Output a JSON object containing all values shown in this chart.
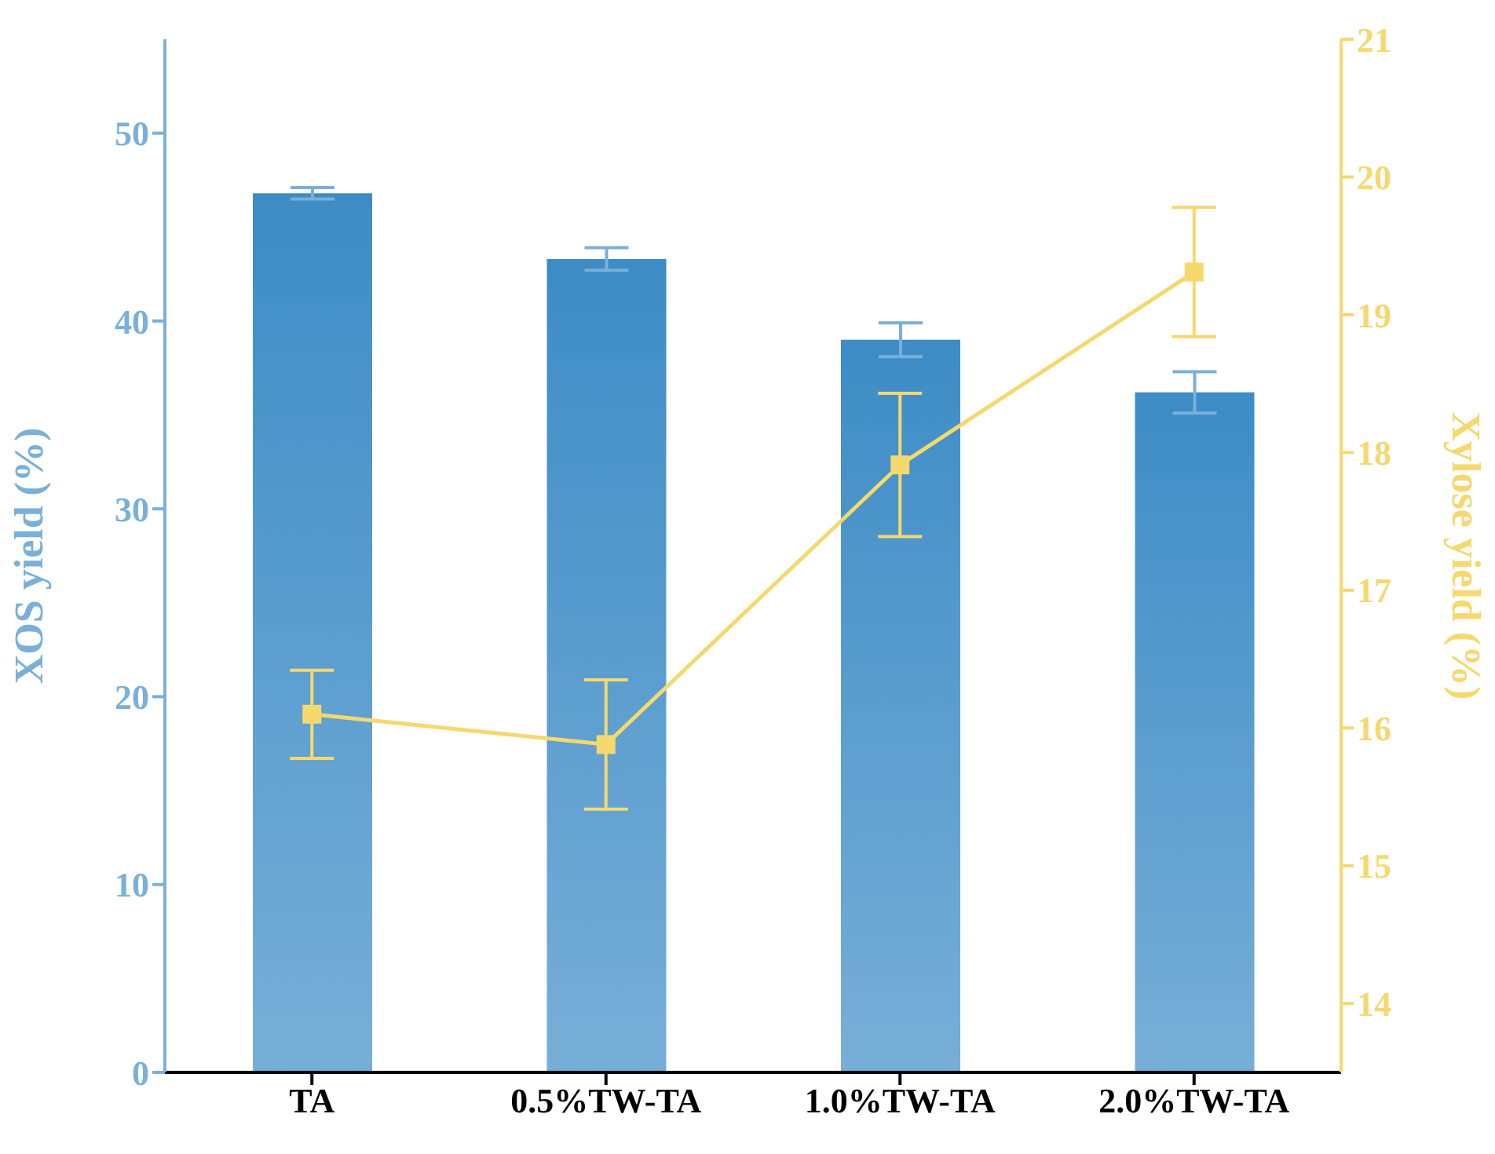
{
  "chart_data": {
    "type": "bar",
    "categories": [
      "TA",
      "0.5%TW-TA",
      "1.0%TW-TA",
      "2.0%TW-TA"
    ],
    "ylabel": "XOS yield (%)",
    "y2label": "Xylose yield (%)",
    "series": [
      {
        "color": "#3d8cc6",
        "values": [
          46.8,
          43.3,
          39.0,
          36.2
        ],
        "errors": [
          0.3,
          0.6,
          0.9,
          1.1
        ]
      },
      {
        "type": "line",
        "axis": "y2",
        "color": "#f5d86e",
        "values": [
          16.1,
          15.88,
          17.91,
          19.31
        ],
        "errors": [
          0.32,
          0.47,
          0.52,
          0.47
        ]
      }
    ],
    "ylim": [
      0,
      55
    ],
    "yticks": [
      0,
      10,
      20,
      30,
      40,
      50
    ],
    "y2lim": [
      13.5,
      21
    ],
    "y2ticks": [
      14,
      15,
      16,
      17,
      18,
      19,
      20,
      21
    ],
    "marker": "square",
    "line_style": "solid"
  }
}
